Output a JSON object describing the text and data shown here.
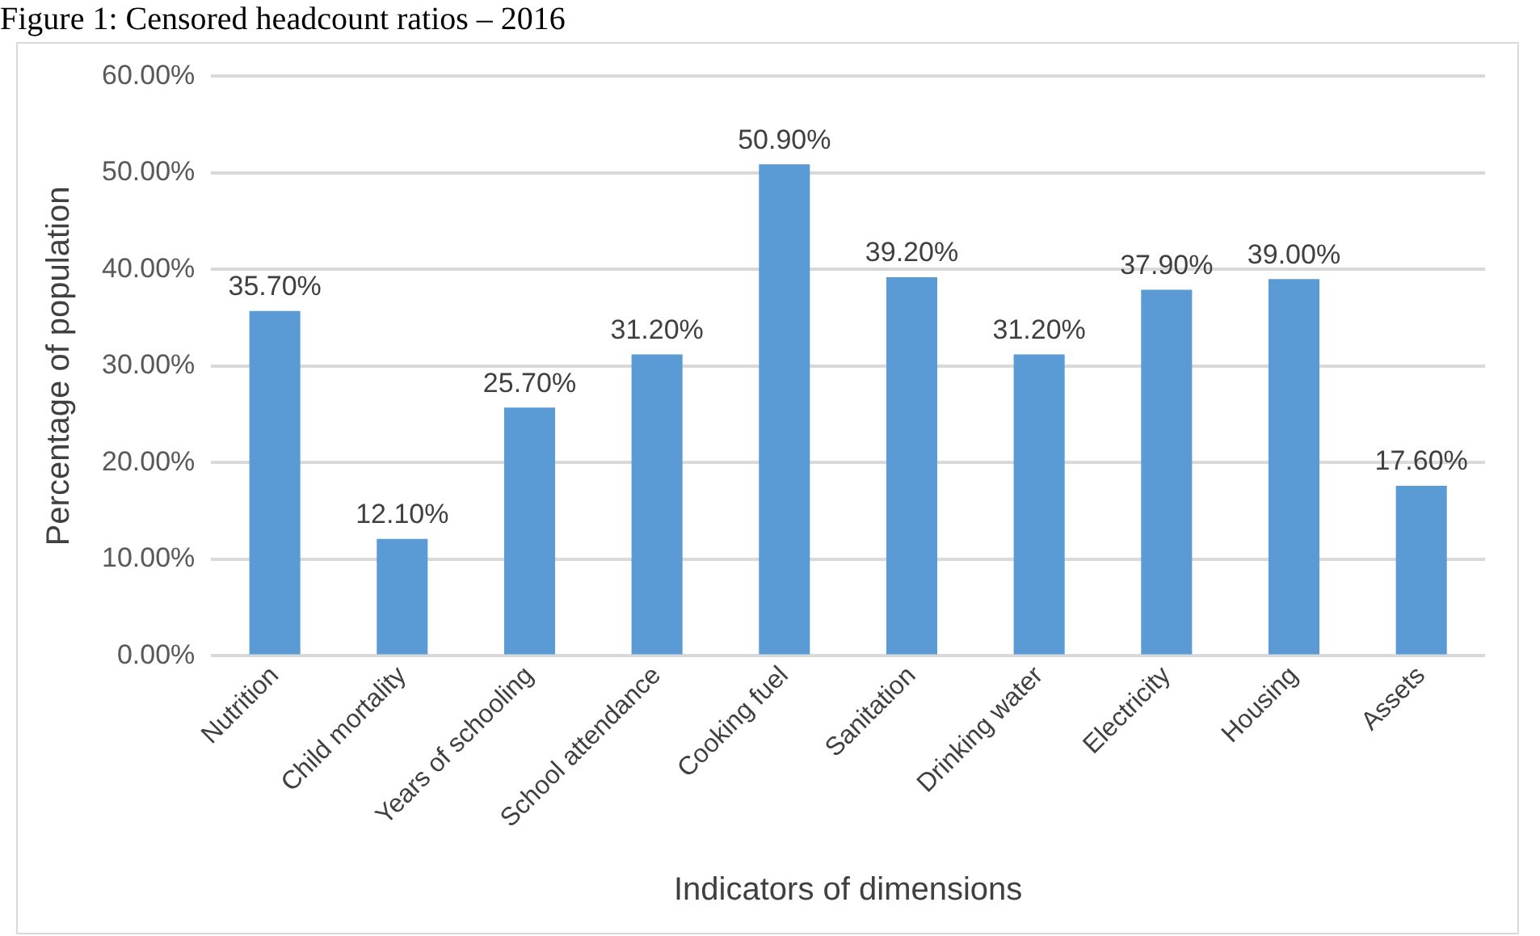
{
  "chart_data": {
    "type": "bar",
    "title": "Figure 1: Censored headcount ratios – 2016",
    "xlabel": "Indicators of dimensions",
    "ylabel": "Percentage of population",
    "categories": [
      "Nutrition",
      "Child mortality",
      "Years of schooling",
      "School attendance",
      "Cooking fuel",
      "Sanitation",
      "Drinking water",
      "Electricity",
      "Housing",
      "Assets"
    ],
    "values": [
      35.7,
      12.1,
      25.7,
      31.2,
      50.9,
      39.2,
      31.2,
      37.9,
      39.0,
      17.6
    ],
    "value_labels": [
      "35.70%",
      "12.10%",
      "25.70%",
      "31.20%",
      "50.90%",
      "39.20%",
      "31.20%",
      "37.90%",
      "39.00%",
      "17.60%"
    ],
    "color": "#5b9bd5",
    "ylim": [
      0,
      60
    ],
    "yticks": [
      {
        "value": 0,
        "label": "0.00%"
      },
      {
        "value": 10,
        "label": "10.00%"
      },
      {
        "value": 20,
        "label": "20.00%"
      },
      {
        "value": 30,
        "label": "30.00%"
      },
      {
        "value": 40,
        "label": "40.00%"
      },
      {
        "value": 50,
        "label": "50.00%"
      },
      {
        "value": 60,
        "label": "60.00%"
      }
    ],
    "grid": "y"
  }
}
